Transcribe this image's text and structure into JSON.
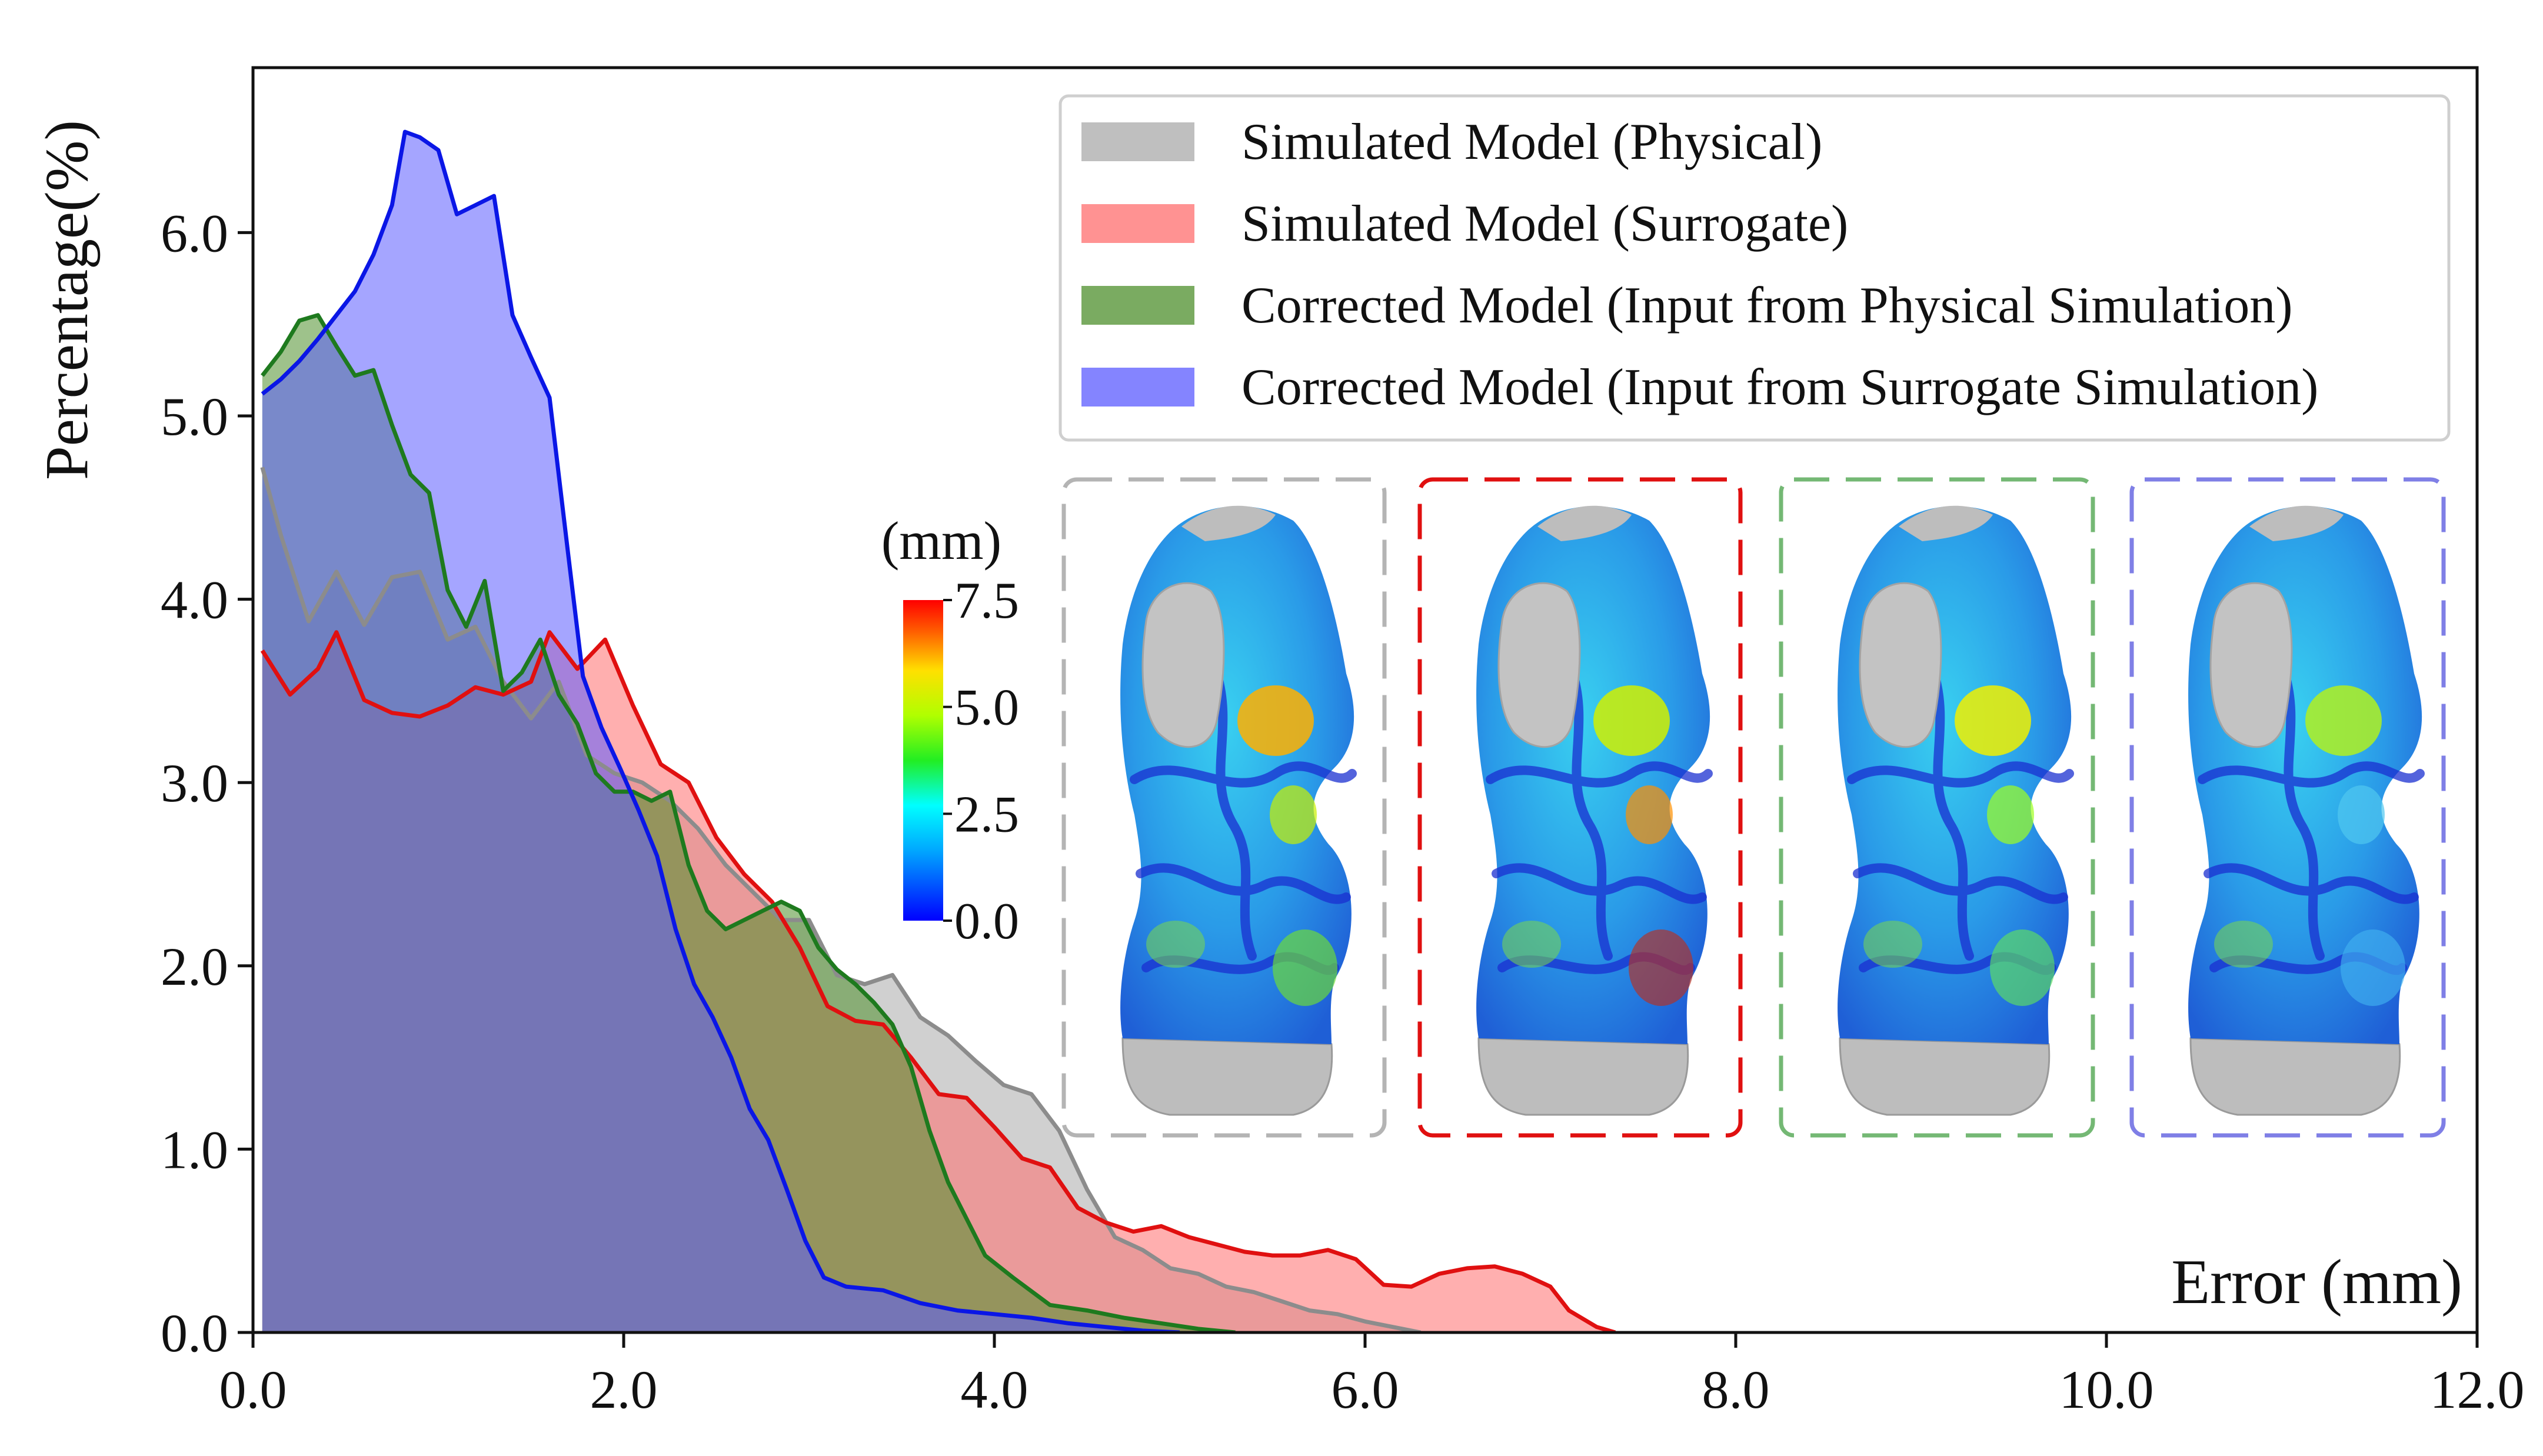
{
  "chart_data": {
    "type": "area",
    "title": "",
    "xlabel": "Error (mm)",
    "ylabel": "Percentage(%)",
    "xlim": [
      0,
      12
    ],
    "ylim": [
      0,
      6.9
    ],
    "xticks": [
      "0.0",
      "2.0",
      "4.0",
      "6.0",
      "8.0",
      "10.0",
      "12.0"
    ],
    "yticks": [
      "0.0",
      "1.0",
      "2.0",
      "3.0",
      "4.0",
      "5.0",
      "6.0"
    ],
    "legend_position": "top-right",
    "series": [
      {
        "name": "Simulated Model (Physical)",
        "fill": "#a9a9a9",
        "line": "#8c8c8c",
        "points": [
          [
            0.05,
            4.72
          ],
          [
            0.15,
            4.35
          ],
          [
            0.3,
            3.88
          ],
          [
            0.45,
            4.15
          ],
          [
            0.6,
            3.86
          ],
          [
            0.75,
            4.12
          ],
          [
            0.9,
            4.15
          ],
          [
            1.05,
            3.78
          ],
          [
            1.2,
            3.85
          ],
          [
            1.35,
            3.55
          ],
          [
            1.5,
            3.35
          ],
          [
            1.65,
            3.55
          ],
          [
            1.8,
            3.15
          ],
          [
            1.95,
            3.05
          ],
          [
            2.1,
            3.0
          ],
          [
            2.25,
            2.9
          ],
          [
            2.4,
            2.75
          ],
          [
            2.55,
            2.55
          ],
          [
            2.7,
            2.4
          ],
          [
            2.85,
            2.25
          ],
          [
            3.0,
            2.25
          ],
          [
            3.15,
            1.95
          ],
          [
            3.3,
            1.9
          ],
          [
            3.45,
            1.95
          ],
          [
            3.6,
            1.72
          ],
          [
            3.75,
            1.62
          ],
          [
            3.9,
            1.48
          ],
          [
            4.05,
            1.35
          ],
          [
            4.2,
            1.3
          ],
          [
            4.35,
            1.1
          ],
          [
            4.5,
            0.78
          ],
          [
            4.65,
            0.52
          ],
          [
            4.8,
            0.45
          ],
          [
            4.95,
            0.35
          ],
          [
            5.1,
            0.32
          ],
          [
            5.25,
            0.25
          ],
          [
            5.4,
            0.22
          ],
          [
            5.55,
            0.17
          ],
          [
            5.7,
            0.12
          ],
          [
            5.85,
            0.1
          ],
          [
            6.0,
            0.06
          ],
          [
            6.15,
            0.03
          ],
          [
            6.3,
            0.0
          ]
        ]
      },
      {
        "name": "Simulated Model (Surrogate)",
        "fill": "#ff6e6e",
        "line": "#e01010",
        "points": [
          [
            0.05,
            3.72
          ],
          [
            0.2,
            3.48
          ],
          [
            0.35,
            3.62
          ],
          [
            0.45,
            3.82
          ],
          [
            0.6,
            3.45
          ],
          [
            0.75,
            3.38
          ],
          [
            0.9,
            3.36
          ],
          [
            1.05,
            3.42
          ],
          [
            1.2,
            3.52
          ],
          [
            1.35,
            3.48
          ],
          [
            1.5,
            3.55
          ],
          [
            1.6,
            3.82
          ],
          [
            1.75,
            3.62
          ],
          [
            1.9,
            3.78
          ],
          [
            2.05,
            3.42
          ],
          [
            2.2,
            3.1
          ],
          [
            2.35,
            3.0
          ],
          [
            2.5,
            2.7
          ],
          [
            2.65,
            2.5
          ],
          [
            2.8,
            2.35
          ],
          [
            2.95,
            2.1
          ],
          [
            3.1,
            1.78
          ],
          [
            3.25,
            1.7
          ],
          [
            3.4,
            1.68
          ],
          [
            3.55,
            1.5
          ],
          [
            3.7,
            1.3
          ],
          [
            3.85,
            1.28
          ],
          [
            4.0,
            1.12
          ],
          [
            4.15,
            0.95
          ],
          [
            4.3,
            0.9
          ],
          [
            4.45,
            0.68
          ],
          [
            4.6,
            0.6
          ],
          [
            4.75,
            0.55
          ],
          [
            4.9,
            0.58
          ],
          [
            5.05,
            0.52
          ],
          [
            5.2,
            0.48
          ],
          [
            5.35,
            0.44
          ],
          [
            5.5,
            0.42
          ],
          [
            5.65,
            0.42
          ],
          [
            5.8,
            0.45
          ],
          [
            5.95,
            0.4
          ],
          [
            6.1,
            0.26
          ],
          [
            6.25,
            0.25
          ],
          [
            6.4,
            0.32
          ],
          [
            6.55,
            0.35
          ],
          [
            6.7,
            0.36
          ],
          [
            6.85,
            0.32
          ],
          [
            7.0,
            0.25
          ],
          [
            7.1,
            0.12
          ],
          [
            7.25,
            0.03
          ],
          [
            7.35,
            0.0
          ]
        ]
      },
      {
        "name": "Corrected Model (Input from Physical Simulation)",
        "fill": "#4e8f2c",
        "line": "#1e7a1e",
        "points": [
          [
            0.05,
            5.22
          ],
          [
            0.15,
            5.35
          ],
          [
            0.25,
            5.52
          ],
          [
            0.35,
            5.55
          ],
          [
            0.45,
            5.38
          ],
          [
            0.55,
            5.22
          ],
          [
            0.65,
            5.25
          ],
          [
            0.75,
            4.95
          ],
          [
            0.85,
            4.68
          ],
          [
            0.95,
            4.58
          ],
          [
            1.05,
            4.05
          ],
          [
            1.15,
            3.85
          ],
          [
            1.25,
            4.1
          ],
          [
            1.35,
            3.5
          ],
          [
            1.45,
            3.6
          ],
          [
            1.55,
            3.78
          ],
          [
            1.65,
            3.48
          ],
          [
            1.75,
            3.32
          ],
          [
            1.85,
            3.05
          ],
          [
            1.95,
            2.95
          ],
          [
            2.05,
            2.95
          ],
          [
            2.15,
            2.9
          ],
          [
            2.25,
            2.95
          ],
          [
            2.35,
            2.55
          ],
          [
            2.45,
            2.3
          ],
          [
            2.55,
            2.2
          ],
          [
            2.65,
            2.25
          ],
          [
            2.75,
            2.3
          ],
          [
            2.85,
            2.35
          ],
          [
            2.95,
            2.3
          ],
          [
            3.05,
            2.1
          ],
          [
            3.15,
            1.98
          ],
          [
            3.25,
            1.9
          ],
          [
            3.35,
            1.8
          ],
          [
            3.45,
            1.68
          ],
          [
            3.55,
            1.45
          ],
          [
            3.65,
            1.1
          ],
          [
            3.75,
            0.82
          ],
          [
            3.85,
            0.62
          ],
          [
            3.95,
            0.42
          ],
          [
            4.1,
            0.3
          ],
          [
            4.3,
            0.15
          ],
          [
            4.5,
            0.12
          ],
          [
            4.7,
            0.08
          ],
          [
            4.9,
            0.05
          ],
          [
            5.1,
            0.02
          ],
          [
            5.3,
            0.0
          ]
        ]
      },
      {
        "name": "Corrected Model (Input from Surrogate Simulation)",
        "fill": "#5b5bff",
        "line": "#0a16e6",
        "points": [
          [
            0.05,
            5.12
          ],
          [
            0.15,
            5.2
          ],
          [
            0.25,
            5.3
          ],
          [
            0.35,
            5.42
          ],
          [
            0.45,
            5.55
          ],
          [
            0.55,
            5.68
          ],
          [
            0.65,
            5.88
          ],
          [
            0.75,
            6.15
          ],
          [
            0.82,
            6.55
          ],
          [
            0.9,
            6.52
          ],
          [
            1.0,
            6.45
          ],
          [
            1.1,
            6.1
          ],
          [
            1.2,
            6.15
          ],
          [
            1.3,
            6.2
          ],
          [
            1.4,
            5.55
          ],
          [
            1.5,
            5.32
          ],
          [
            1.6,
            5.1
          ],
          [
            1.7,
            4.25
          ],
          [
            1.78,
            3.58
          ],
          [
            1.88,
            3.3
          ],
          [
            1.98,
            3.08
          ],
          [
            2.08,
            2.85
          ],
          [
            2.18,
            2.6
          ],
          [
            2.28,
            2.2
          ],
          [
            2.38,
            1.9
          ],
          [
            2.48,
            1.72
          ],
          [
            2.58,
            1.5
          ],
          [
            2.68,
            1.22
          ],
          [
            2.78,
            1.05
          ],
          [
            2.88,
            0.78
          ],
          [
            2.98,
            0.5
          ],
          [
            3.08,
            0.3
          ],
          [
            3.2,
            0.25
          ],
          [
            3.4,
            0.23
          ],
          [
            3.6,
            0.16
          ],
          [
            3.8,
            0.12
          ],
          [
            4.0,
            0.1
          ],
          [
            4.2,
            0.08
          ],
          [
            4.4,
            0.05
          ],
          [
            4.6,
            0.03
          ],
          [
            4.8,
            0.01
          ],
          [
            5.0,
            0.0
          ]
        ]
      }
    ],
    "colorbar": {
      "unit": "(mm)",
      "min": 0,
      "max": 7.5,
      "ticks": [
        "0.0",
        "2.5",
        "5.0",
        "7.5"
      ]
    },
    "insets": [
      {
        "name": "Simulated Model (Physical)",
        "border": "#b4b4b4"
      },
      {
        "name": "Simulated Model (Surrogate)",
        "border": "#e01010"
      },
      {
        "name": "Corrected Model (Input from Physical Simulation)",
        "border": "#74b874"
      },
      {
        "name": "Corrected Model (Input from Surrogate Simulation)",
        "border": "#7f7fe6"
      }
    ]
  }
}
